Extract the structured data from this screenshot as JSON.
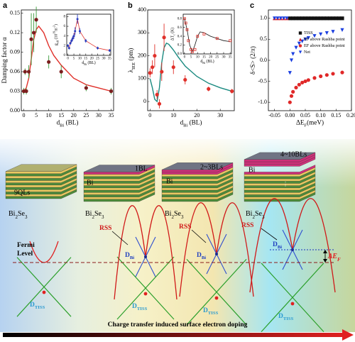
{
  "chart_data": [
    {
      "type": "scatter",
      "label": "a",
      "x_label": [
        "d",
        {
          "sub": "Bi"
        },
        " (BL)"
      ],
      "y_label": [
        "Damping factor α"
      ],
      "xlim": [
        -1,
        36
      ],
      "xticks": [
        0,
        5,
        10,
        15,
        20,
        25,
        30,
        35
      ],
      "ylim": [
        0,
        0.155
      ],
      "yticks": [
        {
          "value": 0,
          "label": "0.00"
        },
        0.03,
        0.06,
        0.09,
        0.12,
        0.15
      ],
      "series": [
        {
          "color": "#7b1e1e",
          "marker": "circle",
          "error_color": "#3a9a3a",
          "x": [
            0,
            0.5,
            1,
            2,
            3,
            4,
            5,
            10,
            15,
            25,
            35
          ],
          "values": [
            0.03,
            0.06,
            0.03,
            0.06,
            0.11,
            0.12,
            0.14,
            0.075,
            0.06,
            0.035,
            0.03
          ],
          "errors": [
            0.005,
            0.005,
            0.005,
            0.01,
            0.04,
            0.03,
            0.02,
            0.01,
            0.01,
            0.005,
            0.005
          ]
        }
      ],
      "fit": {
        "color": "#e0302a",
        "x": [
          0,
          1,
          2,
          3,
          4,
          5,
          6,
          8,
          10,
          12,
          15,
          20,
          25,
          30,
          35
        ],
        "values": [
          0.03,
          0.035,
          0.05,
          0.08,
          0.11,
          0.125,
          0.13,
          0.12,
          0.1,
          0.085,
          0.07,
          0.05,
          0.04,
          0.035,
          0.03
        ]
      }
    },
    {
      "type": "scatter",
      "x_label": [
        "d",
        {
          "sub": "Bi"
        },
        " (BL)"
      ],
      "y_label": [
        "g",
        {
          "sub": "eff"
        },
        " (10",
        {
          "sup": "19"
        },
        "m",
        {
          "sup": "-2"
        },
        ")"
      ],
      "xlim": [
        -1,
        36
      ],
      "xticks": [
        0,
        5,
        10,
        15,
        20,
        25,
        30,
        35
      ],
      "ylim": [
        0,
        8.5
      ],
      "yticks": [
        0,
        2,
        4,
        6,
        8
      ],
      "series": [
        {
          "color": "#2a3ec0",
          "marker": "circle",
          "error_color": "#2a3ec0",
          "x": [
            0,
            1,
            2,
            3,
            4,
            5,
            6,
            8,
            10,
            15,
            25,
            35
          ],
          "values": [
            2,
            1.5,
            2.5,
            3,
            3.5,
            4,
            5,
            7.5,
            5,
            3,
            1.5,
            1
          ],
          "errors": [
            0.3,
            0.3,
            0.3,
            0.4,
            0.5,
            0.6,
            0.8,
            1.0,
            0.6,
            0.4,
            0.3,
            0.3
          ]
        }
      ],
      "fit": {
        "color": "#e0302a",
        "x": [
          0,
          1,
          2,
          3,
          4,
          5,
          6,
          8,
          10,
          15,
          25,
          35
        ],
        "values": [
          2,
          1.5,
          2.5,
          3,
          3.5,
          4,
          5,
          7.5,
          5,
          3,
          1.5,
          1
        ]
      }
    },
    {
      "type": "scatter",
      "label": "b",
      "x_label": [
        "d",
        {
          "sub": "Bi"
        },
        " (BL)"
      ],
      "y_label": [
        "λ",
        {
          "sub": "IEE"
        },
        " (pm)"
      ],
      "xlim": [
        -1,
        36
      ],
      "xticks": [
        0,
        10,
        20,
        30
      ],
      "ylim": [
        -40,
        400
      ],
      "yticks": [
        0,
        100,
        200,
        300,
        400
      ],
      "series": [
        {
          "color": "#e0302a",
          "marker": "circle",
          "error_color": "#e0302a",
          "x": [
            0,
            1,
            2,
            3,
            4,
            5,
            6,
            10,
            15,
            25,
            35
          ],
          "values": [
            125,
            150,
            200,
            30,
            -10,
            130,
            280,
            150,
            95,
            55,
            45
          ],
          "errors": [
            20,
            30,
            50,
            20,
            20,
            40,
            60,
            30,
            20,
            10,
            10
          ]
        }
      ],
      "fit": {
        "color": "#1a8a80",
        "x": [
          0,
          1,
          2,
          3,
          4,
          5,
          6,
          7,
          8,
          10,
          12,
          15,
          20,
          25,
          30,
          35
        ],
        "values": [
          100,
          60,
          10,
          0,
          60,
          170,
          235,
          255,
          250,
          225,
          195,
          155,
          110,
          80,
          60,
          45
        ]
      }
    },
    {
      "type": "scatter",
      "x_label": [
        "d",
        {
          "sub": "Bi"
        },
        " (BL)"
      ],
      "y_label": [
        "ΔT",
        {
          "sub": "c"
        },
        " (K)"
      ],
      "xlim": [
        -1,
        36
      ],
      "xticks": [
        0,
        5,
        10,
        15,
        20,
        25,
        30,
        35
      ],
      "ylim": [
        0,
        0.9
      ],
      "yticks": [
        {
          "value": 0,
          "label": "0.0"
        },
        0.2,
        0.4,
        0.6,
        0.8
      ],
      "series": [
        {
          "color": "#e0302a",
          "marker": "open_square",
          "x": [
            0,
            1,
            2,
            3,
            5,
            6,
            8,
            10,
            15,
            25,
            35
          ],
          "values": [
            0.8,
            0.7,
            0.55,
            0.3,
            0.1,
            0.05,
            0.1,
            0.4,
            0.45,
            0.35,
            0.3
          ]
        }
      ],
      "fit": {
        "color": "#111111",
        "x": [
          0,
          2,
          4,
          6,
          8,
          10,
          12,
          15,
          20,
          25,
          30,
          35
        ],
        "values": [
          0.8,
          0.55,
          0.2,
          0.05,
          0.2,
          0.4,
          0.5,
          0.48,
          0.4,
          0.35,
          0.3,
          0.28
        ]
      }
    },
    {
      "type": "scatter",
      "label": "c",
      "x_label": [
        "ΔE",
        {
          "sub": "F"
        },
        "(meV)"
      ],
      "y_label": [
        "δ<S> (2/π)"
      ],
      "xlim": [
        -0.07,
        0.2
      ],
      "xticks": [
        -0.05,
        {
          "value": 0,
          "label": "0.00"
        },
        0.05,
        {
          "value": 0.1,
          "label": "0.10"
        },
        0.15,
        {
          "value": 0.2,
          "label": "0.20"
        }
      ],
      "ylim": [
        -1.2,
        1.2
      ],
      "yticks": [
        {
          "value": -1,
          "label": "-1.0"
        },
        -0.5,
        {
          "value": 0,
          "label": "0.0"
        },
        0.5,
        {
          "value": 1,
          "label": "1.0"
        }
      ],
      "legend": "right",
      "series": [
        {
          "name": "TISS",
          "color": "#111111",
          "marker": "square",
          "x": [
            0,
            0.01,
            0.02,
            0.03,
            0.04,
            0.05,
            0.06,
            0.07,
            0.08,
            0.09,
            0.1,
            0.11,
            0.12,
            0.13,
            0.14,
            0.15,
            0.16,
            0.17
          ],
          "values": [
            1,
            1,
            1,
            1,
            1,
            1,
            1,
            1,
            1,
            1,
            1,
            1,
            1,
            1,
            1,
            1,
            1,
            1
          ]
        },
        {
          "name": "EF above Rashba point",
          "color": "#e02020",
          "marker": "triangle",
          "x": [
            -0.05,
            -0.04,
            -0.03,
            -0.02,
            -0.01
          ],
          "values": [
            1,
            1,
            1,
            1,
            1
          ]
        },
        {
          "name": "EF above Rashba point",
          "color": "#e02828",
          "marker": "circle",
          "x": [
            0,
            0.005,
            0.01,
            0.02,
            0.03,
            0.04,
            0.05,
            0.06,
            0.08,
            0.1,
            0.12,
            0.14,
            0.17
          ],
          "values": [
            -1,
            -0.85,
            -0.75,
            -0.65,
            -0.58,
            -0.53,
            -0.5,
            -0.47,
            -0.42,
            -0.38,
            -0.35,
            -0.32,
            -0.29
          ]
        },
        {
          "name": "Net",
          "color": "#1a3ee0",
          "marker": "triangle_down",
          "x": [
            -0.05,
            -0.04,
            -0.03,
            -0.02,
            -0.01,
            0,
            0.005,
            0.01,
            0.02,
            0.03,
            0.04,
            0.05,
            0.06,
            0.08,
            0.1,
            0.12,
            0.14,
            0.17
          ],
          "values": [
            1,
            1,
            1,
            1,
            1,
            -0.3,
            0,
            0.15,
            0.3,
            0.4,
            0.45,
            0.5,
            0.53,
            0.58,
            0.62,
            0.65,
            0.68,
            0.72
          ]
        }
      ]
    }
  ],
  "diagram": {
    "ql_label": "9QLs",
    "substrates": [
      [
        "Bi",
        {
          "sub": "2"
        },
        "Se",
        {
          "sub": "3"
        }
      ],
      [
        "Bi",
        {
          "sub": "2"
        },
        "Se",
        {
          "sub": "3"
        }
      ],
      [
        "Bi",
        {
          "sub": "2"
        },
        "Se",
        {
          "sub": "3"
        }
      ],
      [
        "Bi",
        {
          "sub": "2"
        },
        "Se",
        {
          "sub": "3"
        }
      ]
    ],
    "bi_labels": [
      "Bi",
      "Bi",
      "Bi"
    ],
    "stages": [
      "1BL",
      "2~3BLs",
      "4~10BLs"
    ],
    "rss": [
      "RSS",
      "RSS",
      "RSS"
    ],
    "fermi": [
      "Fermi",
      "Level"
    ],
    "dbi": [
      [
        "D",
        {
          "sub": "Bi"
        }
      ],
      [
        "D",
        {
          "sub": "Bi"
        }
      ],
      [
        "D",
        {
          "sub": "Bi"
        }
      ]
    ],
    "dtiss": [
      [
        "D",
        {
          "sub": "TISS"
        }
      ],
      [
        "D",
        {
          "sub": "TISS"
        }
      ],
      [
        "D",
        {
          "sub": "TISS"
        }
      ],
      [
        "D",
        {
          "sub": "TISS"
        }
      ]
    ],
    "delta_ef": [
      "ΔE",
      {
        "sub": "F"
      }
    ],
    "caption": "Charge transfer induced surface electron doping"
  }
}
